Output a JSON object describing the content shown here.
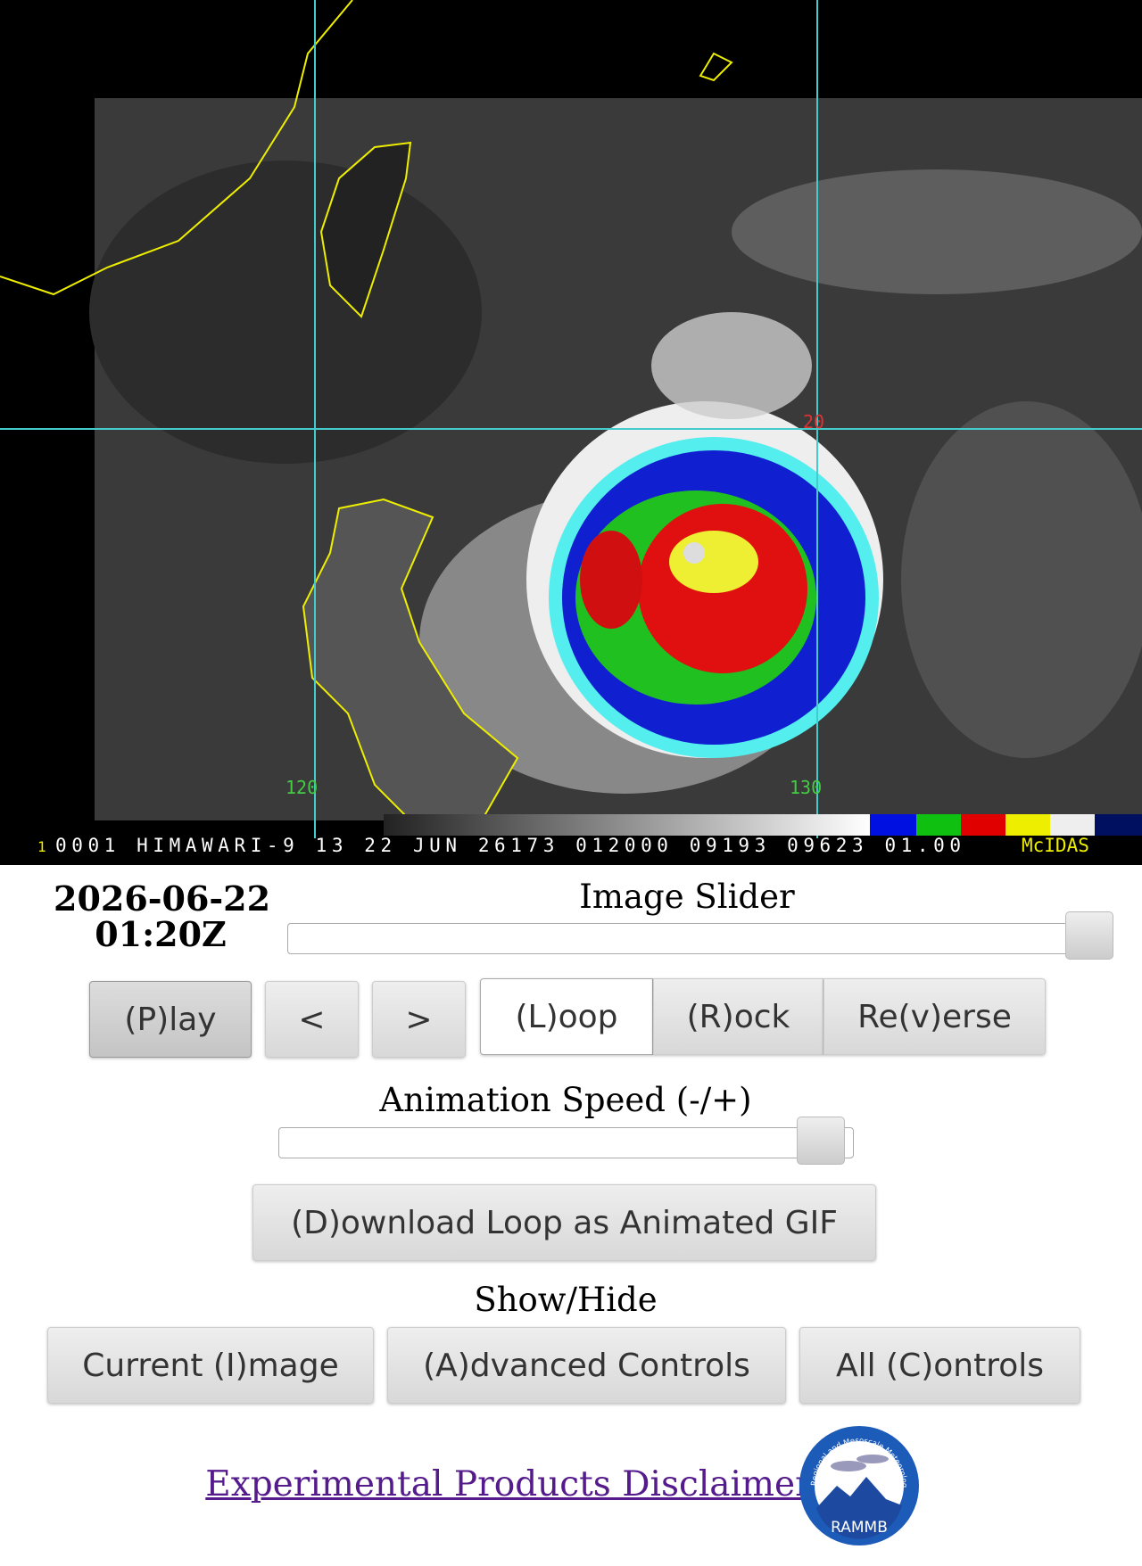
{
  "satellite_image": {
    "caption_index": "1",
    "caption": "0001 HIMAWARI-9 13 22 JUN 26173 012000 09193 09623 01.00",
    "brand": "McIDAS",
    "lat_label": "20",
    "lon_labels": [
      "120",
      "130"
    ]
  },
  "controls": {
    "date": "2026-06-22",
    "time": "01:20Z",
    "image_slider_label": "Image Slider",
    "step_buttons": [
      "(P)lay",
      "<",
      ">"
    ],
    "mode_buttons": [
      "(L)oop",
      "(R)ock",
      "Re(v)erse"
    ],
    "speed_label": "Animation Speed (-/+)",
    "download": "(D)ownload Loop as Animated GIF",
    "show_hide_label": "Show/Hide",
    "show_hide_buttons": [
      "Current (I)mage",
      "(A)dvanced Controls",
      "All (C)ontrols"
    ]
  },
  "footer": {
    "disclaimer": "Experimental Products Disclaimer",
    "logo_text": "RAMMB",
    "logo_ring": "Regional and Mesoscale Meteorology Branch"
  }
}
